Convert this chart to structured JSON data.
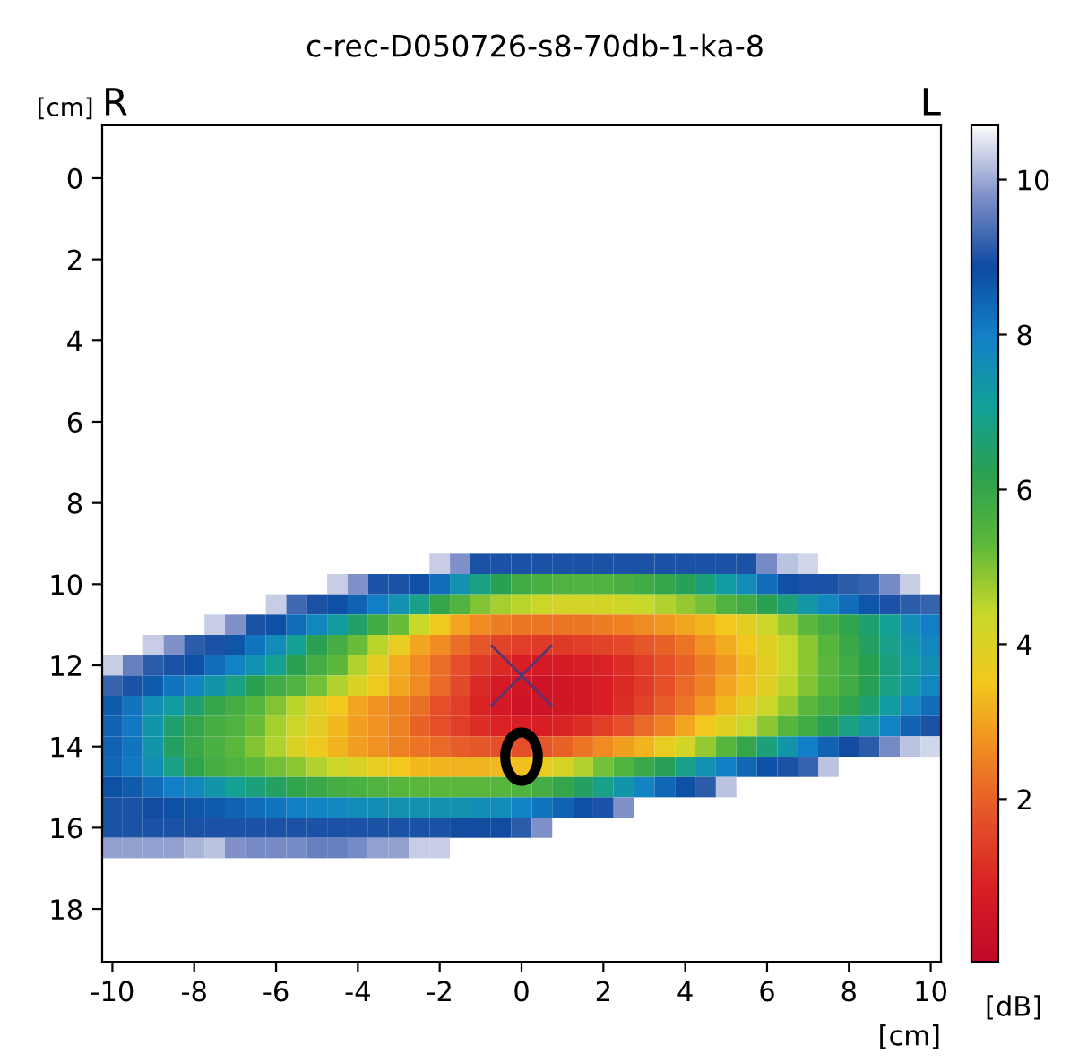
{
  "chart_data": {
    "type": "heatmap",
    "title": "c-rec-D050726-s8-70db-1-ka-8",
    "xlabel": "[cm]",
    "ylabel": "[cm]",
    "clabel": "[dB]",
    "annotations": [
      "R",
      "L"
    ],
    "x": [
      -10,
      -9.5,
      -9,
      -8.5,
      -8,
      -7.5,
      -7,
      -6.5,
      -6,
      -5.5,
      -5,
      -4.5,
      -4,
      -3.5,
      -3,
      -2.5,
      -2,
      -1.5,
      -1,
      -0.5,
      0,
      0.5,
      1,
      1.5,
      2,
      2.5,
      3,
      3.5,
      4,
      4.5,
      5,
      5.5,
      6,
      6.5,
      7,
      7.5,
      8,
      8.5,
      9,
      9.5,
      10
    ],
    "y": [
      9.5,
      10,
      10.5,
      11,
      11.5,
      12,
      12.5,
      13,
      13.5,
      14,
      14.5,
      15,
      15.5,
      16,
      16.5
    ],
    "cells": [
      [
        null,
        null,
        null,
        null,
        null,
        null,
        null,
        null,
        null,
        null,
        null,
        null,
        null,
        null,
        null,
        null,
        10.3,
        9.8,
        9.0,
        9.0,
        9.0,
        9.0,
        9.0,
        9.0,
        9.0,
        9.0,
        9.0,
        9.0,
        9.0,
        9.0,
        9.0,
        9.0,
        9.7,
        10.2,
        10.4,
        null,
        null,
        null,
        null,
        null,
        null
      ],
      [
        null,
        null,
        null,
        null,
        null,
        null,
        null,
        null,
        null,
        null,
        null,
        10.3,
        9.8,
        9.0,
        9.0,
        8.8,
        8.3,
        7.5,
        6.8,
        6.2,
        5.8,
        5.6,
        5.5,
        5.5,
        5.5,
        5.6,
        5.8,
        6.0,
        6.3,
        6.7,
        7.2,
        7.7,
        8.3,
        8.8,
        9.0,
        9.0,
        9.1,
        9.2,
        9.7,
        10.3,
        null
      ],
      [
        null,
        null,
        null,
        null,
        null,
        null,
        null,
        null,
        10.3,
        9.3,
        9.0,
        8.8,
        8.5,
        8.0,
        7.5,
        6.9,
        6.0,
        5.5,
        5.0,
        4.7,
        4.5,
        4.3,
        4.2,
        4.2,
        4.2,
        4.3,
        4.4,
        4.6,
        4.8,
        5.1,
        5.5,
        5.8,
        6.2,
        6.7,
        7.3,
        7.8,
        8.3,
        8.7,
        9.0,
        9.1,
        9.2
      ],
      [
        null,
        null,
        null,
        null,
        null,
        10.3,
        9.8,
        9.0,
        8.8,
        8.3,
        7.8,
        7.2,
        6.5,
        5.8,
        5.2,
        4.4,
        3.6,
        3.0,
        2.6,
        2.4,
        2.3,
        2.3,
        2.3,
        2.3,
        2.4,
        2.5,
        2.6,
        2.8,
        3.0,
        3.2,
        3.5,
        3.8,
        4.3,
        4.8,
        5.3,
        5.7,
        6.1,
        6.6,
        7.0,
        7.6,
        8.0
      ],
      [
        null,
        null,
        10.3,
        9.8,
        9.1,
        9.0,
        8.7,
        8.2,
        7.7,
        7.0,
        6.2,
        5.7,
        5.2,
        4.5,
        3.7,
        3.0,
        2.6,
        2.2,
        1.8,
        1.5,
        1.4,
        1.3,
        1.3,
        1.4,
        1.5,
        1.6,
        1.8,
        2.0,
        2.3,
        2.7,
        3.1,
        3.5,
        3.9,
        4.4,
        4.9,
        5.4,
        5.9,
        6.4,
        6.9,
        7.4,
        7.8
      ],
      [
        10.3,
        9.6,
        9.1,
        9.0,
        8.8,
        8.3,
        7.9,
        7.5,
        7.0,
        6.2,
        5.7,
        5.3,
        4.6,
        3.8,
        3.1,
        2.6,
        2.2,
        1.7,
        1.3,
        1.0,
        0.8,
        0.7,
        0.7,
        0.8,
        0.9,
        1.1,
        1.4,
        1.7,
        2.0,
        2.4,
        2.8,
        3.3,
        3.8,
        4.4,
        4.9,
        5.3,
        5.8,
        6.2,
        6.7,
        7.2,
        7.6
      ],
      [
        9.2,
        9.0,
        8.6,
        8.2,
        7.9,
        7.4,
        6.8,
        6.2,
        5.8,
        5.5,
        5.1,
        4.6,
        4.0,
        3.6,
        3.0,
        2.6,
        2.1,
        1.6,
        1.0,
        0.7,
        0.5,
        0.4,
        0.5,
        0.6,
        0.8,
        1.0,
        1.3,
        1.7,
        2.1,
        2.5,
        3.0,
        3.4,
        3.9,
        4.5,
        5.0,
        5.4,
        5.8,
        6.3,
        6.8,
        7.3,
        7.8
      ],
      [
        8.6,
        8.2,
        7.6,
        7.2,
        6.6,
        6.0,
        5.7,
        5.4,
        5.0,
        4.5,
        3.9,
        3.5,
        3.0,
        2.7,
        2.5,
        2.2,
        1.7,
        1.4,
        0.9,
        0.6,
        0.4,
        0.4,
        0.5,
        0.6,
        0.8,
        1.1,
        1.5,
        1.9,
        2.3,
        2.8,
        3.3,
        3.8,
        4.3,
        4.8,
        5.3,
        5.7,
        6.1,
        6.6,
        7.2,
        7.8,
        8.3
      ],
      [
        8.5,
        8.1,
        7.4,
        6.6,
        6.0,
        5.7,
        5.5,
        5.2,
        4.7,
        4.3,
        3.8,
        3.3,
        2.9,
        2.7,
        2.5,
        2.0,
        1.7,
        1.4,
        1.1,
        0.9,
        0.8,
        0.8,
        0.9,
        1.1,
        1.4,
        1.7,
        2.1,
        2.5,
        3.0,
        3.5,
        3.9,
        4.4,
        4.9,
        5.4,
        5.8,
        6.3,
        6.8,
        7.3,
        7.9,
        8.5,
        9.0
      ],
      [
        8.5,
        8.2,
        7.4,
        6.4,
        5.9,
        5.6,
        5.3,
        5.0,
        4.6,
        4.0,
        3.6,
        3.2,
        2.9,
        2.7,
        2.5,
        2.3,
        2.1,
        1.9,
        1.8,
        1.7,
        1.7,
        1.8,
        2.0,
        2.3,
        2.6,
        2.9,
        3.2,
        3.7,
        4.2,
        4.8,
        5.4,
        6.0,
        6.7,
        7.4,
        8.0,
        8.5,
        8.9,
        9.1,
        9.7,
        10.2,
        10.4
      ],
      [
        8.4,
        8.1,
        7.6,
        6.8,
        6.1,
        5.7,
        5.5,
        5.3,
        5.1,
        4.9,
        4.6,
        4.3,
        4.0,
        3.7,
        3.5,
        3.3,
        3.2,
        3.2,
        3.2,
        3.3,
        3.4,
        3.7,
        4.1,
        4.6,
        5.1,
        5.5,
        5.9,
        6.3,
        6.9,
        7.5,
        8.0,
        8.4,
        8.8,
        9.0,
        9.2,
        10.2,
        null,
        null,
        null,
        null,
        null
      ],
      [
        8.8,
        8.6,
        8.3,
        8.0,
        7.8,
        7.4,
        7.0,
        6.7,
        6.4,
        6.1,
        5.9,
        5.7,
        5.6,
        5.5,
        5.4,
        5.3,
        5.3,
        5.3,
        5.3,
        5.4,
        5.5,
        5.7,
        6.0,
        6.4,
        6.9,
        7.4,
        7.9,
        8.4,
        8.8,
        9.1,
        10.2,
        null,
        null,
        null,
        null,
        null,
        null,
        null,
        null,
        null,
        null
      ],
      [
        9.0,
        9.0,
        8.9,
        8.8,
        8.7,
        8.6,
        8.5,
        8.3,
        8.2,
        8.0,
        7.9,
        7.8,
        7.7,
        7.6,
        7.5,
        7.5,
        7.5,
        7.5,
        7.6,
        7.7,
        7.9,
        8.2,
        8.5,
        8.8,
        9.0,
        9.8,
        null,
        null,
        null,
        null,
        null,
        null,
        null,
        null,
        null,
        null,
        null,
        null,
        null,
        null,
        null
      ],
      [
        9.0,
        9.0,
        9.0,
        9.0,
        9.0,
        9.0,
        9.0,
        9.0,
        9.0,
        9.0,
        9.0,
        9.0,
        9.0,
        9.0,
        9.0,
        9.0,
        9.0,
        8.9,
        8.9,
        8.9,
        9.1,
        9.8,
        null,
        null,
        null,
        null,
        null,
        null,
        null,
        null,
        null,
        null,
        null,
        null,
        null,
        null,
        null,
        null,
        null,
        null,
        null
      ],
      [
        9.9,
        9.9,
        9.9,
        9.9,
        10.1,
        10.2,
        9.8,
        9.7,
        9.7,
        9.7,
        9.6,
        9.6,
        9.7,
        9.9,
        9.9,
        10.3,
        10.3,
        null,
        null,
        null,
        null,
        null,
        null,
        null,
        null,
        null,
        null,
        null,
        null,
        null,
        null,
        null,
        null,
        null,
        null,
        null,
        null,
        null,
        null,
        null,
        null
      ]
    ],
    "colors": [
      "#c00a28",
      "#d81e24",
      "#e4502a",
      "#f08a22",
      "#f2c81e",
      "#c8d82a",
      "#5cb83a",
      "#2aa050",
      "#12a09a",
      "#1280c8",
      "#0e4aa0",
      "#7f90c8",
      "#fafafa"
    ],
    "clim": [
      -0.1,
      10.7
    ],
    "cticks": [
      2,
      4,
      6,
      8,
      10
    ],
    "xlim": [
      -10.25,
      10.25
    ],
    "xticks": [
      -10,
      -8,
      -6,
      -4,
      -2,
      0,
      2,
      4,
      6,
      8,
      10
    ],
    "ylim": [
      19.3,
      -1.3
    ],
    "yticks": [
      0,
      2,
      4,
      6,
      8,
      10,
      12,
      14,
      16,
      18
    ],
    "series": [
      {
        "type": "scatter",
        "x": [
          0
        ],
        "values": [
          12.25
        ],
        "marker": "cross",
        "color": "#5a3470"
      },
      {
        "type": "scatter",
        "x": [
          0
        ],
        "values": [
          14.25
        ],
        "marker": "circle",
        "color": "#000000"
      }
    ]
  }
}
